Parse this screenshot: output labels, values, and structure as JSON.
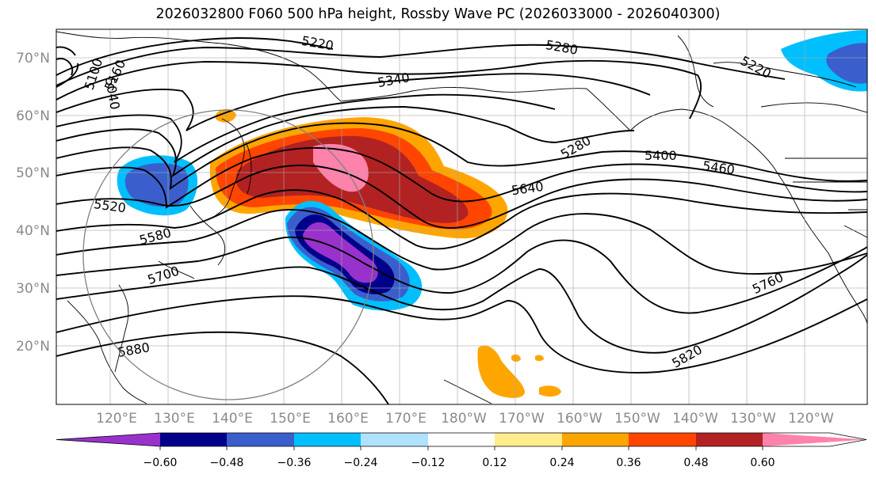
{
  "title": "2026032800 F060 500 hPa height, Rossby Wave PC (2026033000 - 2026040300)",
  "map": {
    "lat_labels": [
      "70°N",
      "60°N",
      "50°N",
      "40°N",
      "30°N",
      "20°N"
    ],
    "lon_labels": [
      "120°E",
      "130°E",
      "140°E",
      "150°E",
      "160°E",
      "170°E",
      "180°W",
      "170°W",
      "160°W",
      "150°W",
      "140°W",
      "130°W",
      "120°W"
    ],
    "contour_labels": [
      "5220",
      "5280",
      "5220",
      "5040",
      "5100",
      "5160",
      "5340",
      "5280",
      "5400",
      "5460",
      "5520",
      "5580",
      "5640",
      "5700",
      "5760",
      "5820",
      "5880"
    ]
  },
  "colorbar": {
    "tick_labels": [
      "−0.60",
      "−0.48",
      "−0.36",
      "−0.24",
      "−0.12",
      "0.12",
      "0.24",
      "0.36",
      "0.48",
      "0.60"
    ],
    "colors": [
      "#9932cc",
      "#00008b",
      "#3a5fcd",
      "#00bfff",
      "#b0e2ff",
      "#ffffff",
      "#ffec8b",
      "#ffa500",
      "#ff4500",
      "#b22222",
      "#ff82ab"
    ]
  }
}
